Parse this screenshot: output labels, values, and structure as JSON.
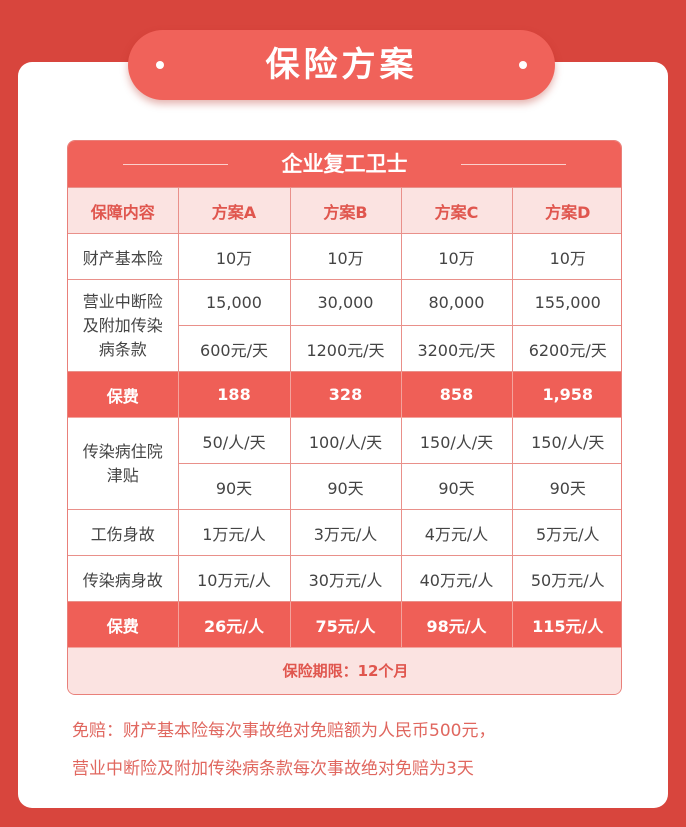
{
  "header": {
    "title": "保险方案"
  },
  "table": {
    "title": "企业复工卫士",
    "columns": [
      "保障内容",
      "方案A",
      "方案B",
      "方案C",
      "方案D"
    ],
    "property": {
      "label": "财产基本险",
      "values": [
        "10万",
        "10万",
        "10万",
        "10万"
      ]
    },
    "interruption": {
      "label": "营业中断险及附加传染病条款",
      "amounts": [
        "15,000",
        "30,000",
        "80,000",
        "155,000"
      ],
      "daily": [
        "600元/天",
        "1200元/天",
        "3200元/天",
        "6200元/天"
      ]
    },
    "fee1": {
      "label": "保费",
      "values": [
        "188",
        "328",
        "858",
        "1,958"
      ]
    },
    "hospital": {
      "label": "传染病住院津贴",
      "daily": [
        "50/人/天",
        "100/人/天",
        "150/人/天",
        "150/人/天"
      ],
      "days": [
        "90天",
        "90天",
        "90天",
        "90天"
      ]
    },
    "injury": {
      "label": "工伤身故",
      "values": [
        "1万元/人",
        "3万元/人",
        "4万元/人",
        "5万元/人"
      ]
    },
    "disease_death": {
      "label": "传染病身故",
      "values": [
        "10万元/人",
        "30万元/人",
        "40万元/人",
        "50万元/人"
      ]
    },
    "fee2": {
      "label": "保费",
      "values": [
        "26元/人",
        "75元/人",
        "98元/人",
        "115元/人"
      ]
    },
    "term": "保险期限：12个月"
  },
  "notes": [
    "免赔：财产基本险每次事故绝对免赔额为人民币500元，",
    "营业中断险及附加传染病条款每次事故绝对免赔为3天"
  ],
  "colors": {
    "background": "#d8453d",
    "accent": "#f0625a",
    "light": "#fbe3e1"
  }
}
